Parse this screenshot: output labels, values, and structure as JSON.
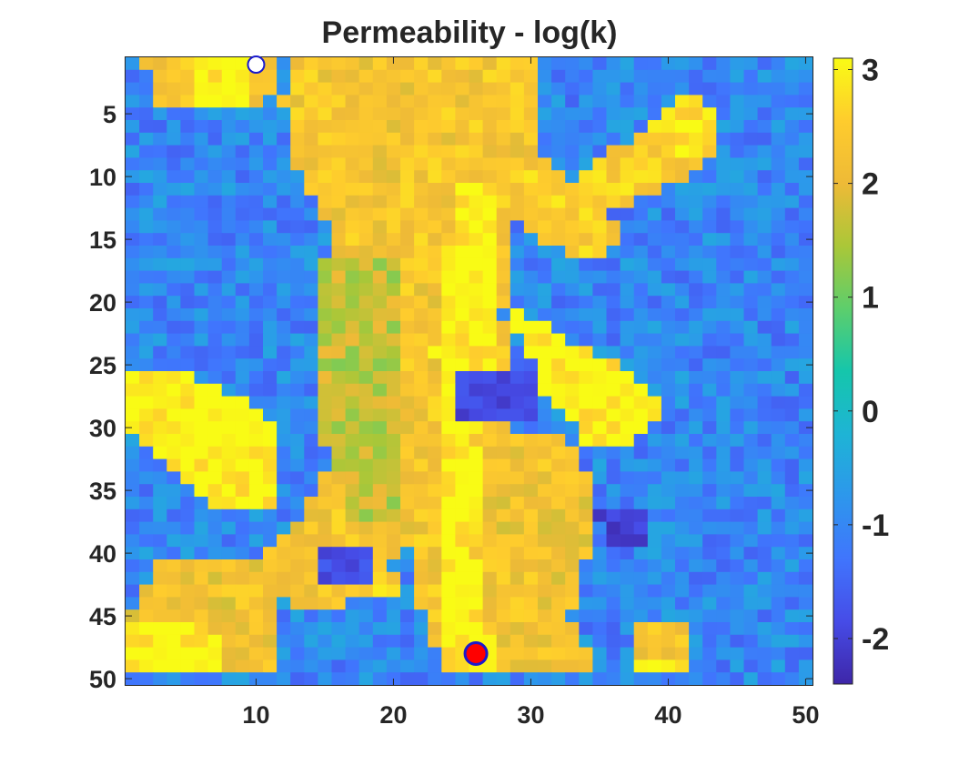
{
  "chart_data": {
    "type": "heatmap",
    "title": "Permeability - log(k)",
    "xlabel": "",
    "ylabel": "",
    "grid": false,
    "x_range": [
      0.5,
      50.5
    ],
    "y_range": [
      0.5,
      50.5
    ],
    "y_direction": "reversed",
    "x_ticks": [
      10,
      20,
      30,
      40,
      50
    ],
    "y_ticks": [
      5,
      10,
      15,
      20,
      25,
      30,
      35,
      40,
      45,
      50
    ],
    "x_tick_labels": [
      "10",
      "20",
      "30",
      "40",
      "50"
    ],
    "y_tick_labels": [
      "5",
      "10",
      "15",
      "20",
      "25",
      "30",
      "35",
      "40",
      "45",
      "50"
    ],
    "colorbar": {
      "location": "right",
      "colormap": "parula",
      "clim": [
        -2.4,
        3.1
      ],
      "ticks": [
        -2,
        -1,
        0,
        1,
        2,
        3
      ],
      "tick_labels": [
        "-2",
        "-1",
        "0",
        "1",
        "2",
        "3"
      ]
    },
    "grid_size": [
      50,
      50
    ],
    "base_value": -1.0,
    "high_regions": [
      {
        "value": 2.2,
        "polygon": [
          [
            2,
            1
          ],
          [
            12,
            1
          ],
          [
            12,
            3
          ],
          [
            9,
            5
          ],
          [
            3,
            5
          ]
        ]
      },
      {
        "value": 3.0,
        "polygon": [
          [
            5,
            1
          ],
          [
            10,
            1
          ],
          [
            9,
            5
          ],
          [
            6,
            4
          ]
        ]
      },
      {
        "value": 2.3,
        "polygon": [
          [
            13,
            1
          ],
          [
            22,
            1
          ],
          [
            24,
            5
          ],
          [
            25,
            14
          ],
          [
            22,
            24
          ],
          [
            22,
            33
          ],
          [
            21,
            40
          ],
          [
            17,
            44
          ],
          [
            13,
            45
          ],
          [
            10,
            41
          ],
          [
            13,
            38
          ],
          [
            16,
            31
          ],
          [
            17,
            22
          ],
          [
            16,
            16
          ],
          [
            13,
            9
          ],
          [
            12,
            4
          ]
        ]
      },
      {
        "value": 1.6,
        "polygon": [
          [
            15,
            17
          ],
          [
            20,
            16
          ],
          [
            21,
            25
          ],
          [
            21,
            37
          ],
          [
            17,
            38
          ],
          [
            15,
            31
          ]
        ]
      },
      {
        "value": 2.3,
        "polygon": [
          [
            22,
            1
          ],
          [
            31,
            1
          ],
          [
            31,
            6
          ],
          [
            29,
            11
          ],
          [
            28,
            21
          ],
          [
            29,
            32
          ],
          [
            31,
            42
          ],
          [
            33,
            50
          ],
          [
            24,
            50
          ],
          [
            22,
            44
          ],
          [
            21,
            33
          ],
          [
            20,
            20
          ],
          [
            21,
            8
          ]
        ]
      },
      {
        "value": 3.0,
        "polygon": [
          [
            25,
            10
          ],
          [
            28,
            12
          ],
          [
            28,
            20
          ],
          [
            27,
            26
          ],
          [
            26,
            40
          ],
          [
            27,
            46
          ],
          [
            28,
            50
          ],
          [
            23,
            50
          ],
          [
            24,
            38
          ],
          [
            23,
            24
          ],
          [
            24,
            16
          ]
        ]
      },
      {
        "value": 3.0,
        "polygon": [
          [
            28,
            20
          ],
          [
            33,
            23
          ],
          [
            37,
            25
          ],
          [
            40,
            29
          ],
          [
            37,
            32
          ],
          [
            34,
            31
          ],
          [
            31,
            27
          ]
        ]
      },
      {
        "value": 3.0,
        "polygon": [
          [
            1,
            26
          ],
          [
            6,
            26
          ],
          [
            11,
            29
          ],
          [
            12,
            33
          ],
          [
            11,
            37
          ],
          [
            7,
            37
          ],
          [
            1,
            30
          ]
        ]
      },
      {
        "value": 2.5,
        "polygon": [
          [
            30,
            8
          ],
          [
            34,
            11
          ],
          [
            37,
            14
          ],
          [
            35,
            17
          ],
          [
            31,
            15
          ],
          [
            28,
            12
          ]
        ]
      },
      {
        "value": 2.5,
        "polygon": [
          [
            32,
            11
          ],
          [
            36,
            8
          ],
          [
            40,
            5
          ],
          [
            42,
            3
          ],
          [
            44,
            8
          ],
          [
            40,
            11
          ],
          [
            36,
            13
          ]
        ]
      },
      {
        "value": 3.0,
        "polygon": [
          [
            41,
            6
          ],
          [
            44,
            4
          ],
          [
            44,
            7
          ],
          [
            41,
            9
          ]
        ]
      },
      {
        "value": 2.2,
        "polygon": [
          [
            3,
            41
          ],
          [
            11,
            41
          ],
          [
            12,
            47
          ],
          [
            12,
            50
          ],
          [
            1,
            50
          ],
          [
            1,
            45
          ]
        ]
      },
      {
        "value": 3.0,
        "polygon": [
          [
            1,
            46
          ],
          [
            5,
            45
          ],
          [
            8,
            47
          ],
          [
            8,
            50
          ],
          [
            1,
            50
          ]
        ]
      },
      {
        "value": 2.2,
        "polygon": [
          [
            26,
            31
          ],
          [
            33,
            31
          ],
          [
            35,
            36
          ],
          [
            33,
            45
          ],
          [
            35,
            50
          ],
          [
            28,
            50
          ],
          [
            27,
            42
          ]
        ]
      },
      {
        "value": 2.2,
        "polygon": [
          [
            38,
            46
          ],
          [
            42,
            45
          ],
          [
            42,
            49
          ],
          [
            38,
            50
          ]
        ]
      },
      {
        "value": 3.0,
        "polygon": [
          [
            38,
            49
          ],
          [
            42,
            49
          ],
          [
            42,
            50
          ],
          [
            38,
            50
          ]
        ]
      },
      {
        "value": 2.5,
        "polygon": [
          [
            16,
            42
          ],
          [
            21,
            42
          ],
          [
            21,
            44
          ],
          [
            16,
            44
          ]
        ]
      }
    ],
    "low_regions": [
      {
        "value": -1.9,
        "polygon": [
          [
            25,
            26
          ],
          [
            31,
            26
          ],
          [
            31,
            30
          ],
          [
            25,
            30
          ]
        ]
      },
      {
        "value": -2.0,
        "polygon": [
          [
            35,
            37
          ],
          [
            38,
            36
          ],
          [
            39,
            40
          ],
          [
            36,
            40
          ]
        ]
      },
      {
        "value": -1.8,
        "polygon": [
          [
            15,
            40
          ],
          [
            19,
            40
          ],
          [
            19,
            43
          ],
          [
            15,
            43
          ]
        ]
      }
    ],
    "markers": [
      {
        "name": "injector",
        "x": 10,
        "y": 0.5,
        "face": "#ffffff",
        "edge": "#1a1acc"
      },
      {
        "name": "producer",
        "x": 26,
        "y": 48,
        "face": "#ff0000",
        "edge": "#1a1acc"
      }
    ]
  }
}
